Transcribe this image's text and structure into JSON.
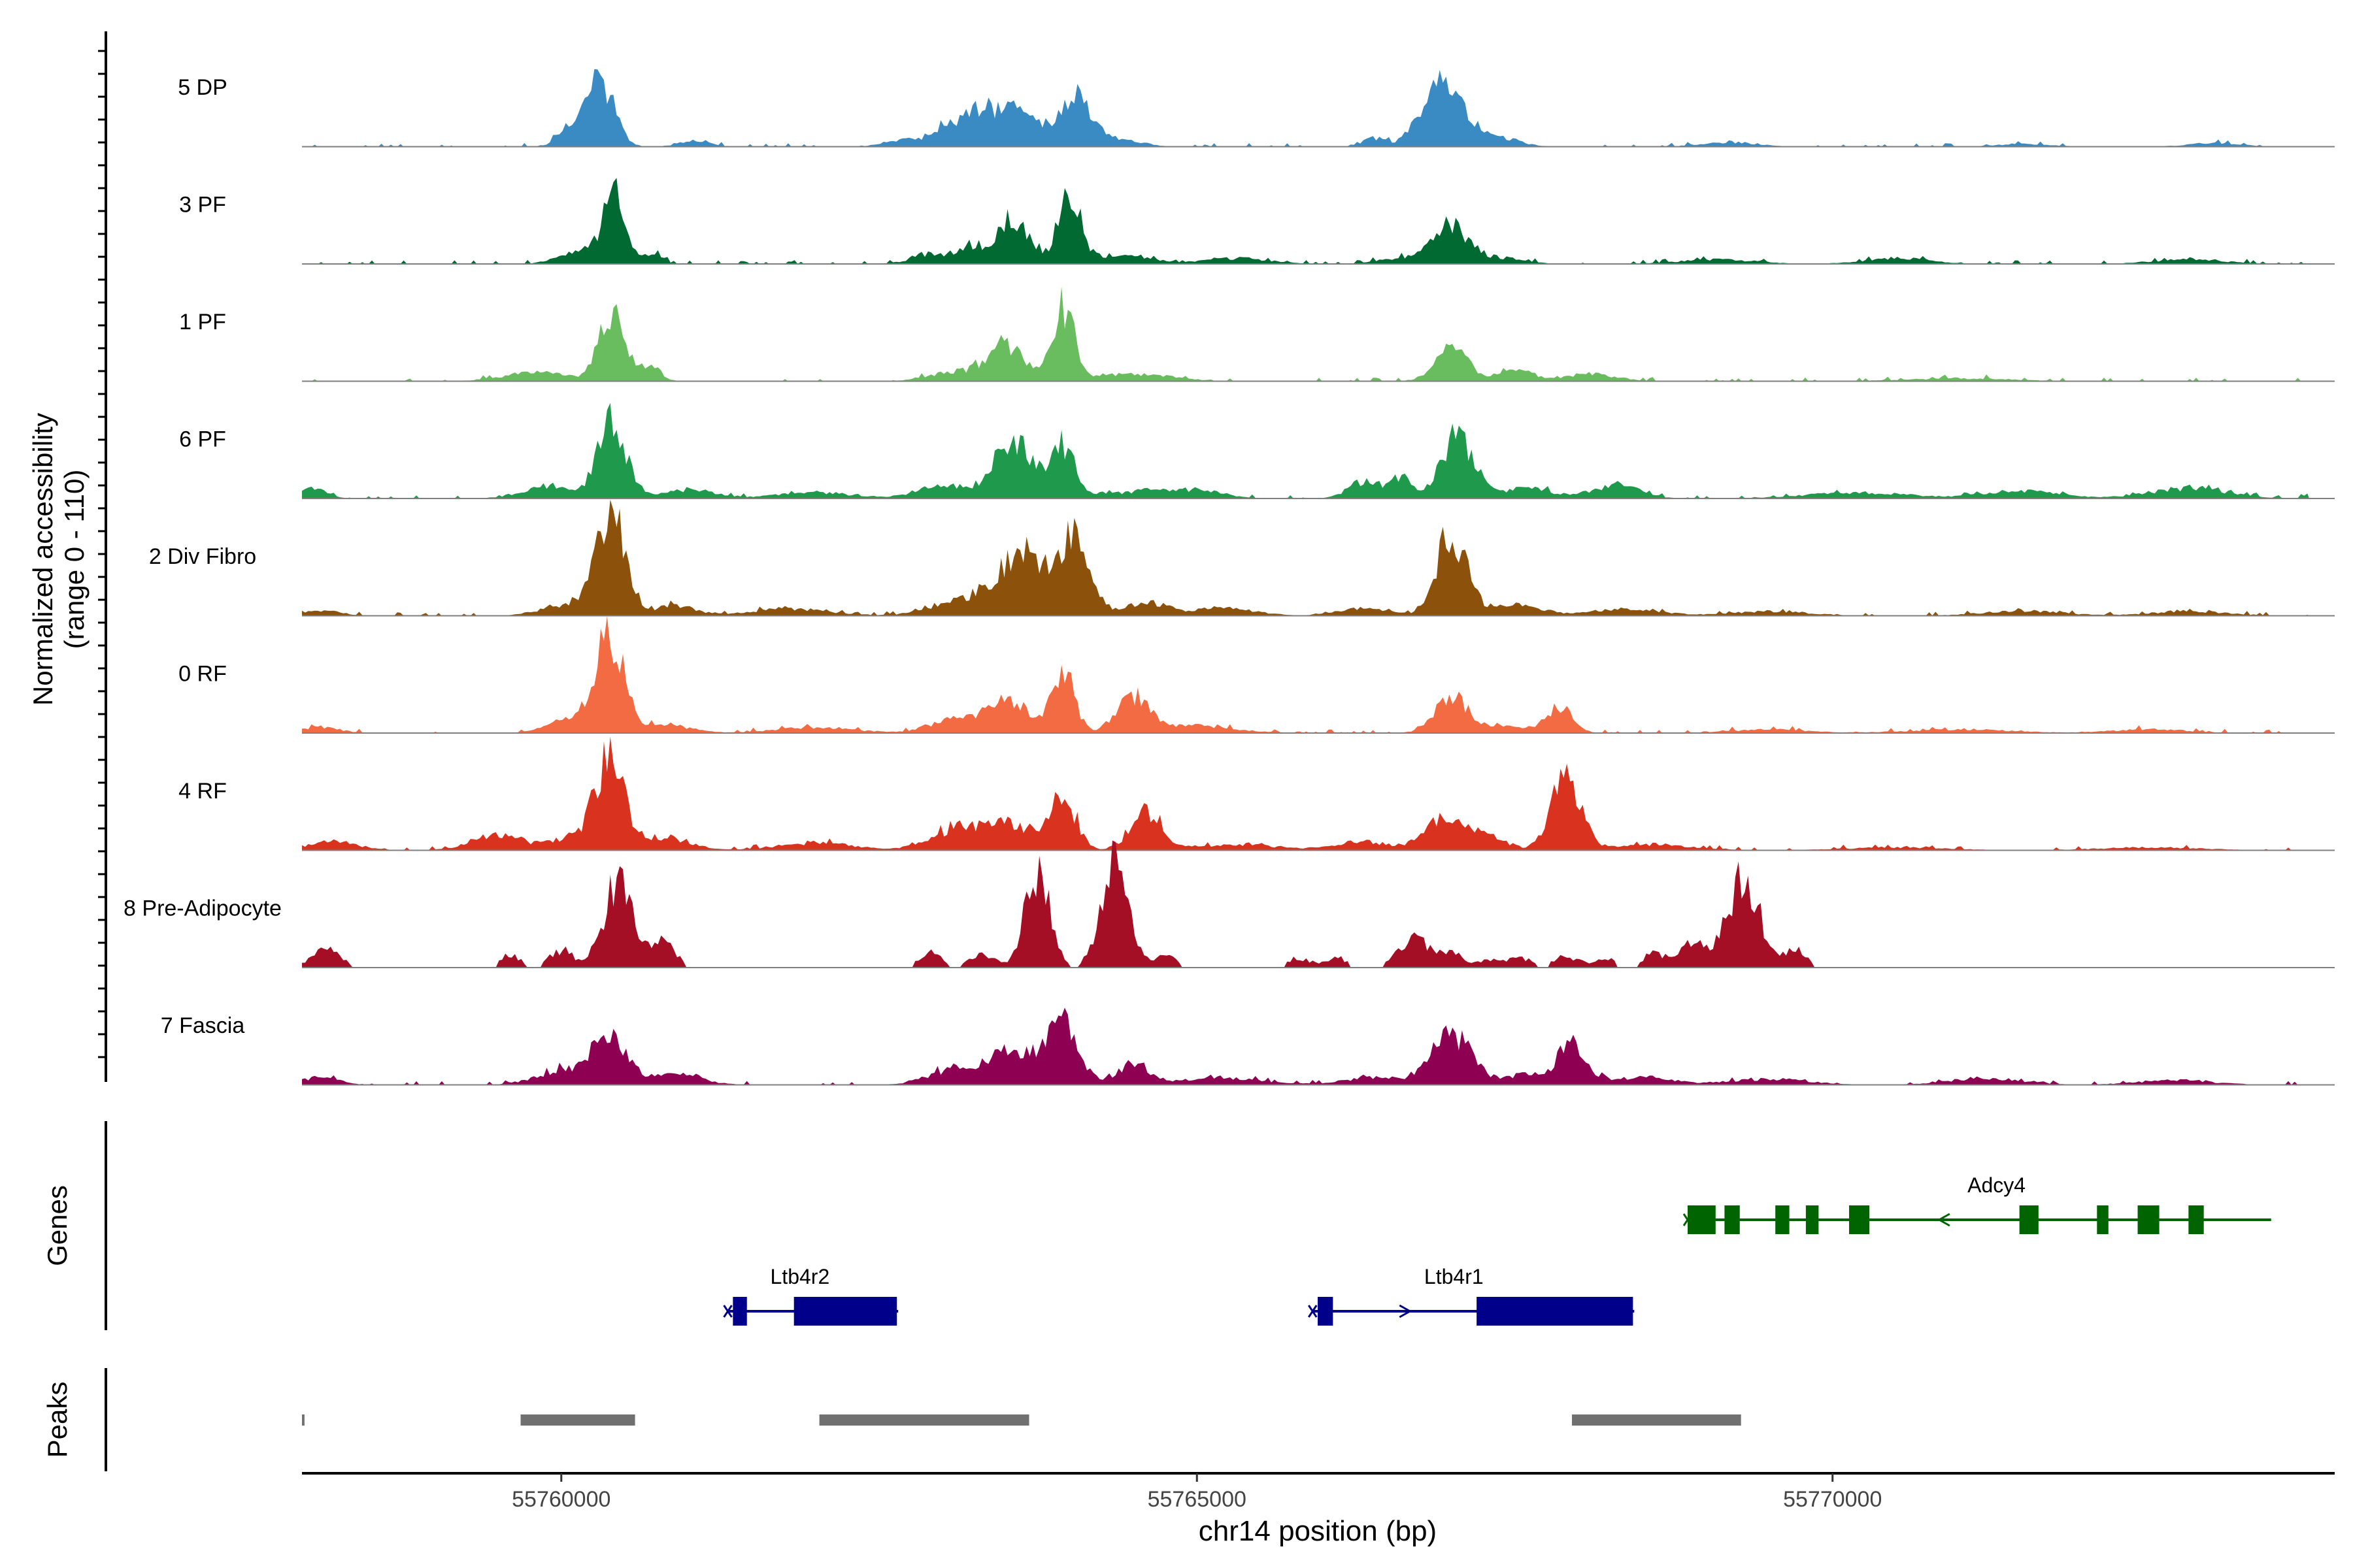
{
  "chart_data": {
    "type": "area",
    "title": "",
    "ylabel": "Normalized accessibility",
    "ylabel_range": "(range 0 - 110)",
    "xlabel": "chr14 position (bp)",
    "ylim": [
      0,
      110
    ],
    "xlim": [
      55757960,
      55773950
    ],
    "x_ticks": [
      55760000,
      55765000,
      55770000
    ],
    "x_tick_labels": [
      "55760000",
      "55765000",
      "55770000"
    ],
    "genes_label": "Genes",
    "peaks_label": "Peaks",
    "tracks": [
      {
        "name": "5 DP",
        "color": "#3a8bc4",
        "peaks": [
          [
            55760020,
            22,
            70
          ],
          [
            55760300,
            95,
            110
          ],
          [
            55761050,
            8,
            120
          ],
          [
            55762700,
            10,
            150
          ],
          [
            55763000,
            22,
            100
          ],
          [
            55763300,
            48,
            160
          ],
          [
            55763650,
            42,
            160
          ],
          [
            55764050,
            70,
            110
          ],
          [
            55764350,
            12,
            180
          ],
          [
            55766400,
            12,
            90
          ],
          [
            55766800,
            38,
            110
          ],
          [
            55767000,
            75,
            140
          ],
          [
            55767400,
            10,
            160
          ],
          [
            55769200,
            6,
            200
          ],
          [
            55771500,
            4,
            200
          ],
          [
            55773000,
            5,
            200
          ]
        ]
      },
      {
        "name": "3 PF",
        "color": "#006a32",
        "peaks": [
          [
            55760150,
            18,
            160
          ],
          [
            55760420,
            108,
            85
          ],
          [
            55760730,
            18,
            60
          ],
          [
            55762900,
            12,
            150
          ],
          [
            55763200,
            22,
            100
          ],
          [
            55763550,
            62,
            140
          ],
          [
            55764000,
            102,
            85
          ],
          [
            55764400,
            12,
            220
          ],
          [
            55765300,
            8,
            250
          ],
          [
            55766600,
            8,
            180
          ],
          [
            55767000,
            52,
            140
          ],
          [
            55767400,
            8,
            180
          ],
          [
            55769100,
            6,
            300
          ],
          [
            55770500,
            8,
            250
          ],
          [
            55772800,
            6,
            280
          ]
        ]
      },
      {
        "name": "1 PF",
        "color": "#6abd5f",
        "peaks": [
          [
            55759800,
            12,
            250
          ],
          [
            55760400,
            96,
            100
          ],
          [
            55760700,
            22,
            80
          ],
          [
            55763100,
            12,
            200
          ],
          [
            55763500,
            48,
            150
          ],
          [
            55763950,
            98,
            85
          ],
          [
            55764500,
            10,
            300
          ],
          [
            55767000,
            45,
            130
          ],
          [
            55767500,
            14,
            150
          ],
          [
            55768100,
            10,
            200
          ],
          [
            55771000,
            4,
            400
          ]
        ]
      },
      {
        "name": "6 PF",
        "color": "#1f9a4c",
        "peaks": [
          [
            55758050,
            14,
            100
          ],
          [
            55759900,
            18,
            200
          ],
          [
            55760400,
            108,
            110
          ],
          [
            55761000,
            12,
            200
          ],
          [
            55762000,
            8,
            300
          ],
          [
            55763000,
            18,
            200
          ],
          [
            55763550,
            80,
            150
          ],
          [
            55763950,
            72,
            90
          ],
          [
            55764500,
            8,
            300
          ],
          [
            55765000,
            10,
            220
          ],
          [
            55766300,
            22,
            120
          ],
          [
            55766600,
            28,
            100
          ],
          [
            55767050,
            85,
            130
          ],
          [
            55767600,
            14,
            200
          ],
          [
            55768300,
            18,
            180
          ],
          [
            55770200,
            8,
            400
          ],
          [
            55771500,
            10,
            300
          ],
          [
            55772800,
            14,
            300
          ],
          [
            55773800,
            12,
            60
          ]
        ]
      },
      {
        "name": "2 Div Fibro",
        "color": "#8c510a",
        "peaks": [
          [
            55758100,
            8,
            150
          ],
          [
            55760100,
            18,
            220
          ],
          [
            55760400,
            140,
            110
          ],
          [
            55760900,
            15,
            150
          ],
          [
            55761800,
            10,
            300
          ],
          [
            55763100,
            18,
            220
          ],
          [
            55763650,
            85,
            220
          ],
          [
            55764050,
            98,
            120
          ],
          [
            55764600,
            18,
            160
          ],
          [
            55765200,
            10,
            250
          ],
          [
            55766300,
            10,
            200
          ],
          [
            55767000,
            110,
            120
          ],
          [
            55767500,
            14,
            220
          ],
          [
            55768400,
            10,
            250
          ],
          [
            55769500,
            6,
            300
          ],
          [
            55771500,
            7,
            300
          ],
          [
            55772800,
            6,
            300
          ]
        ]
      },
      {
        "name": "0 RF",
        "color": "#f26b42",
        "peaks": [
          [
            55758100,
            8,
            150
          ],
          [
            55760100,
            20,
            180
          ],
          [
            55760380,
            130,
            110
          ],
          [
            55760800,
            12,
            200
          ],
          [
            55762000,
            8,
            300
          ],
          [
            55763100,
            18,
            200
          ],
          [
            55763500,
            50,
            150
          ],
          [
            55763950,
            80,
            90
          ],
          [
            55764500,
            48,
            130
          ],
          [
            55765000,
            10,
            300
          ],
          [
            55767000,
            48,
            130
          ],
          [
            55767400,
            10,
            200
          ],
          [
            55767850,
            34,
            100
          ],
          [
            55769500,
            5,
            300
          ],
          [
            55771000,
            5,
            400
          ],
          [
            55772500,
            5,
            300
          ]
        ]
      },
      {
        "name": "4 RF",
        "color": "#d9321f",
        "peaks": [
          [
            55758200,
            12,
            200
          ],
          [
            55759500,
            22,
            200
          ],
          [
            55760100,
            18,
            160
          ],
          [
            55760380,
            128,
            110
          ],
          [
            55760800,
            18,
            200
          ],
          [
            55762000,
            10,
            300
          ],
          [
            55763100,
            28,
            200
          ],
          [
            55763550,
            35,
            200
          ],
          [
            55763950,
            70,
            100
          ],
          [
            55764600,
            55,
            120
          ],
          [
            55765300,
            8,
            350
          ],
          [
            55766300,
            12,
            200
          ],
          [
            55766950,
            42,
            160
          ],
          [
            55767300,
            22,
            120
          ],
          [
            55767900,
            95,
            120
          ],
          [
            55768600,
            8,
            300
          ],
          [
            55770500,
            4,
            400
          ],
          [
            55772500,
            4,
            400
          ]
        ]
      },
      {
        "name": "8 Pre-Adipocyte",
        "color": "#a50f26",
        "peaks": [
          [
            55758150,
            22,
            120
          ],
          [
            55759600,
            16,
            80
          ],
          [
            55760000,
            22,
            90
          ],
          [
            55760450,
            105,
            120
          ],
          [
            55760800,
            30,
            100
          ],
          [
            55762900,
            18,
            90
          ],
          [
            55763300,
            18,
            100
          ],
          [
            55763750,
            125,
            100
          ],
          [
            55764350,
            125,
            110
          ],
          [
            55764750,
            15,
            90
          ],
          [
            55765800,
            12,
            90
          ],
          [
            55766100,
            12,
            90
          ],
          [
            55766700,
            38,
            120
          ],
          [
            55767000,
            18,
            90
          ],
          [
            55767300,
            10,
            90
          ],
          [
            55767550,
            12,
            90
          ],
          [
            55767900,
            15,
            90
          ],
          [
            55768200,
            12,
            90
          ],
          [
            55768600,
            18,
            90
          ],
          [
            55768900,
            32,
            100
          ],
          [
            55769300,
            110,
            130
          ],
          [
            55769700,
            22,
            90
          ]
        ]
      },
      {
        "name": "7 Fascia",
        "color": "#8e0152",
        "peaks": [
          [
            55758100,
            10,
            150
          ],
          [
            55760000,
            20,
            200
          ],
          [
            55760380,
            68,
            130
          ],
          [
            55760900,
            14,
            200
          ],
          [
            55763100,
            22,
            200
          ],
          [
            55763550,
            48,
            180
          ],
          [
            55763950,
            82,
            120
          ],
          [
            55764500,
            28,
            130
          ],
          [
            55765200,
            10,
            300
          ],
          [
            55766400,
            10,
            250
          ],
          [
            55767000,
            68,
            150
          ],
          [
            55767600,
            14,
            200
          ],
          [
            55767950,
            52,
            110
          ],
          [
            55768500,
            10,
            250
          ],
          [
            55769500,
            8,
            300
          ],
          [
            55771200,
            8,
            300
          ],
          [
            55772700,
            6,
            300
          ]
        ]
      }
    ],
    "genes": [
      {
        "name": "Ltb4r2",
        "strand": "+",
        "color": "#00008b",
        "row": 2,
        "start": 55761310,
        "end": 55762650,
        "exons": [
          [
            55761350,
            55761460
          ],
          [
            55761830,
            55762640
          ]
        ]
      },
      {
        "name": "Ltb4r1",
        "strand": "+",
        "color": "#00008b",
        "row": 2,
        "start": 55765910,
        "end": 55768440,
        "exons": [
          [
            55765950,
            55766070
          ],
          [
            55767200,
            55768430
          ]
        ]
      },
      {
        "name": "Adcy4",
        "strand": "-",
        "color": "#006400",
        "row": 1,
        "start": 55768860,
        "end": 55773450,
        "exons": [
          [
            55768860,
            55769080
          ],
          [
            55769150,
            55769270
          ],
          [
            55769550,
            55769660
          ],
          [
            55769790,
            55769890
          ],
          [
            55770130,
            55770290
          ],
          [
            55771470,
            55771620
          ],
          [
            55772080,
            55772170
          ],
          [
            55772400,
            55772570
          ],
          [
            55772800,
            55772920
          ]
        ]
      }
    ],
    "peaks": [
      [
        55757960,
        55757980
      ],
      [
        55759680,
        55760580
      ],
      [
        55762030,
        55763680
      ],
      [
        55767950,
        55769280
      ]
    ]
  }
}
